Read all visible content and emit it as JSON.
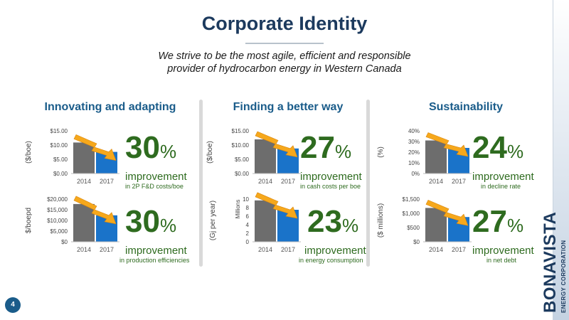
{
  "title": "Corporate Identity",
  "subtitle": [
    "We strive to be the most agile, efficient and responsible",
    "provider of hydrocarbon energy in Western Canada"
  ],
  "columns": [
    "Innovating and adapting",
    "Finding a better way",
    "Sustainability"
  ],
  "colors": {
    "bar_2014": "#6d6d6d",
    "bar_2017": "#1a73c9",
    "arrow": "#f6a81c",
    "green_text": "#2e6b1f",
    "navy": "#1c3a5e",
    "heading_blue": "#1a5c8a"
  },
  "stats": [
    {
      "number": "30",
      "unit": "%",
      "label": "improvement",
      "detail": "in 2P F&D costs/boe"
    },
    {
      "number": "27",
      "unit": "%",
      "label": "improvement",
      "detail": "in cash costs per boe"
    },
    {
      "number": "24",
      "unit": "%",
      "label": "improvement",
      "detail": "in decline rate"
    },
    {
      "number": "30",
      "unit": "%",
      "label": "improvement",
      "detail": "in production efficiencies"
    },
    {
      "number": "23",
      "unit": "%",
      "label": "improvement",
      "detail": "in energy consumption"
    },
    {
      "number": "27",
      "unit": "%",
      "label": "improvement",
      "detail": "in net debt"
    }
  ],
  "chart_data": [
    {
      "type": "bar",
      "categories": [
        "2014",
        "2017"
      ],
      "values": [
        10.9,
        7.6
      ],
      "ylim": [
        0,
        15
      ],
      "yticks": [
        "$0.00",
        "$5.00",
        "$10.00",
        "$15.00"
      ],
      "ylabel": "($/boe)",
      "ylabel2": "",
      "xlabel": "",
      "title": ""
    },
    {
      "type": "bar",
      "categories": [
        "2014",
        "2017"
      ],
      "values": [
        12.0,
        8.8
      ],
      "ylim": [
        0,
        15
      ],
      "yticks": [
        "$0.00",
        "$5.00",
        "$10.00",
        "$15.00"
      ],
      "ylabel": "($/boe)",
      "ylabel2": "",
      "xlabel": "",
      "title": ""
    },
    {
      "type": "bar",
      "categories": [
        "2014",
        "2017"
      ],
      "values": [
        31,
        24
      ],
      "ylim": [
        0,
        40
      ],
      "yticks": [
        "0%",
        "10%",
        "20%",
        "30%",
        "40%"
      ],
      "ylabel": "(%)",
      "ylabel2": "",
      "xlabel": "",
      "title": ""
    },
    {
      "type": "bar",
      "categories": [
        "2014",
        "2017"
      ],
      "values": [
        17700,
        12400
      ],
      "ylim": [
        0,
        20000
      ],
      "yticks": [
        "$0",
        "$5,000",
        "$10,000",
        "$15,000",
        "$20,000"
      ],
      "ylabel": "$/boepd",
      "ylabel2": "",
      "xlabel": "",
      "title": ""
    },
    {
      "type": "bar",
      "categories": [
        "2014",
        "2017"
      ],
      "values": [
        9.7,
        7.5
      ],
      "ylim": [
        0,
        10
      ],
      "yticks": [
        "0",
        "2",
        "4",
        "6",
        "8",
        "10"
      ],
      "ylabel": "(Gj per year)",
      "ylabel2": "Millions",
      "xlabel": "",
      "title": ""
    },
    {
      "type": "bar",
      "categories": [
        "2014",
        "2017"
      ],
      "values": [
        1190,
        870
      ],
      "ylim": [
        0,
        1500
      ],
      "yticks": [
        "$0",
        "$500",
        "$1,000",
        "$1,500"
      ],
      "ylabel": "($ millions)",
      "ylabel2": "",
      "xlabel": "",
      "title": ""
    }
  ],
  "logo": {
    "name": "BONAVISTA",
    "sub": "ENERGY CORPORATION"
  },
  "page_number": "4"
}
